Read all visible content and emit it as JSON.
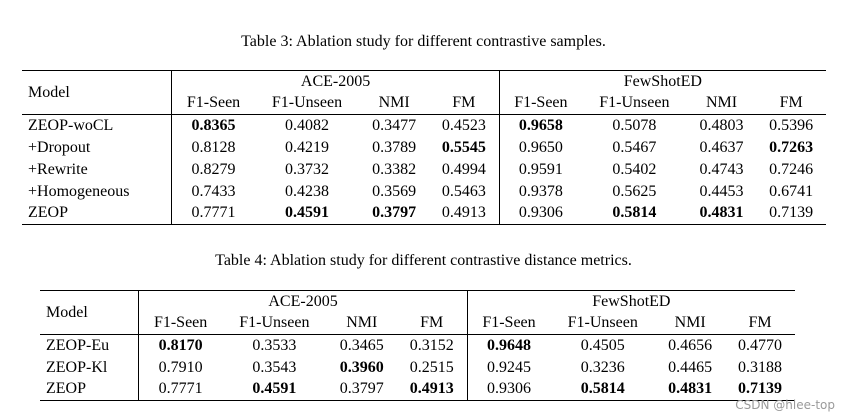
{
  "table3": {
    "caption": "Table 3: Ablation study for different contrastive samples.",
    "model_header": "Model",
    "group1": "ACE-2005",
    "group2": "FewShotED",
    "cols": [
      "F1-Seen",
      "F1-Unseen",
      "NMI",
      "FM",
      "F1-Seen",
      "F1-Unseen",
      "NMI",
      "FM"
    ],
    "rows": [
      {
        "model": "ZEOP-woCL",
        "values": [
          "0.8365",
          "0.4082",
          "0.3477",
          "0.4523",
          "0.9658",
          "0.5078",
          "0.4803",
          "0.5396"
        ]
      },
      {
        "model": "+Dropout",
        "values": [
          "0.8128",
          "0.4219",
          "0.3789",
          "0.5545",
          "0.9650",
          "0.5467",
          "0.4637",
          "0.7263"
        ]
      },
      {
        "model": "+Rewrite",
        "values": [
          "0.8279",
          "0.3732",
          "0.3382",
          "0.4994",
          "0.9591",
          "0.5402",
          "0.4743",
          "0.7246"
        ]
      },
      {
        "model": "+Homogeneous",
        "values": [
          "0.7433",
          "0.4238",
          "0.3569",
          "0.5463",
          "0.9378",
          "0.5625",
          "0.4453",
          "0.6741"
        ]
      },
      {
        "model": "ZEOP",
        "values": [
          "0.7771",
          "0.4591",
          "0.3797",
          "0.4913",
          "0.9306",
          "0.5814",
          "0.4831",
          "0.7139"
        ]
      }
    ]
  },
  "table4": {
    "caption": "Table 4: Ablation study for different contrastive distance metrics.",
    "model_header": "Model",
    "group1": "ACE-2005",
    "group2": "FewShotED",
    "cols": [
      "F1-Seen",
      "F1-Unseen",
      "NMI",
      "FM",
      "F1-Seen",
      "F1-Unseen",
      "NMI",
      "FM"
    ],
    "rows": [
      {
        "model": "ZEOP-Eu",
        "values": [
          "0.8170",
          "0.3533",
          "0.3465",
          "0.3152",
          "0.9648",
          "0.4505",
          "0.4656",
          "0.4770"
        ]
      },
      {
        "model": "ZEOP-Kl",
        "values": [
          "0.7910",
          "0.3543",
          "0.3960",
          "0.2515",
          "0.9245",
          "0.3236",
          "0.4465",
          "0.3188"
        ]
      },
      {
        "model": "ZEOP",
        "values": [
          "0.7771",
          "0.4591",
          "0.3797",
          "0.4913",
          "0.9306",
          "0.5814",
          "0.4831",
          "0.7139"
        ]
      }
    ]
  },
  "watermark": "CSDN @hlee-top"
}
